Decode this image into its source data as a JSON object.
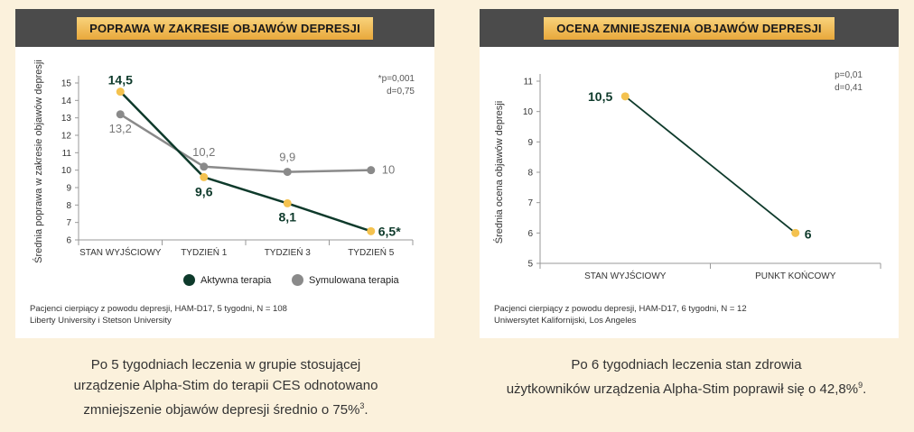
{
  "left": {
    "header": "POPRAWA W ZAKRESIE OBJAWÓW DEPRESJI",
    "stat_line1": "*p=0,001",
    "stat_line2": "d=0,75",
    "legend_active": "Aktywna terapia",
    "legend_sham": "Symulowana terapia",
    "note_line1": "Pacjenci cierpiący z powodu depresji, HAM-D17, 5 tygodni, N = 108",
    "note_line2": "Liberty University i Stetson University",
    "caption_line1": "Po 5 tygodniach leczenia w grupie stosującej",
    "caption_line2": "urządzenie Alpha-Stim do terapii CES odnotowano",
    "caption_line3": "zmniejszenie objawów depresji średnio o 75%",
    "caption_sup": "3",
    "caption_end": "."
  },
  "right": {
    "header": "OCENA ZMNIEJSZENIA OBJAWÓW DEPRESJI",
    "stat_line1": "p=0,01",
    "stat_line2": "d=0,41",
    "note_line1": "Pacjenci cierpiący z powodu depresji, HAM-D17, 6 tygodni, N = 12",
    "note_line2": "Uniwersytet Kalifornijski, Los Angeles",
    "caption_line1": "Po 6 tygodniach leczenia stan zdrowia",
    "caption_line2": "użytkowników urządzenia Alpha-Stim poprawił się o 42,8%",
    "caption_sup": "9",
    "caption_end": "."
  },
  "colors": {
    "active": "#0e3a2b",
    "sham": "#8a8a8a",
    "marker": "#f4c24f",
    "header_bg": "#4b4b4b"
  },
  "chart_data": [
    {
      "type": "line",
      "title": "POPRAWA W ZAKRESIE OBJAWÓW DEPRESJI",
      "ylabel": "Średnia poprawa w zakresie objawów depresji",
      "xlabel": "",
      "categories": [
        "STAN WYJŚCIOWY",
        "TYDZIEŃ 1",
        "TYDZIEŃ 3",
        "TYDZIEŃ 5"
      ],
      "ylim": [
        6,
        15
      ],
      "yticks": [
        "6",
        "7",
        "8",
        "9",
        "10",
        "11",
        "12",
        "13",
        "14",
        "15"
      ],
      "series": [
        {
          "name": "Aktywna terapia",
          "values": [
            14.5,
            9.6,
            8.1,
            6.5
          ],
          "labels": [
            "14,5",
            "9,6",
            "8,1",
            "6,5*"
          ]
        },
        {
          "name": "Symulowana terapia",
          "values": [
            13.2,
            10.2,
            9.9,
            10
          ],
          "labels": [
            "13,2",
            "10,2",
            "9,9",
            "10"
          ]
        }
      ],
      "grid": false,
      "legend": "bottom-right"
    },
    {
      "type": "line",
      "title": "OCENA ZMNIEJSZENIA OBJAWÓW DEPRESJI",
      "ylabel": "Średnia ocena objawów depresji",
      "xlabel": "",
      "categories": [
        "STAN WYJŚCIOWY",
        "PUNKT KOŃCOWY"
      ],
      "ylim": [
        5,
        11
      ],
      "yticks": [
        "5",
        "6",
        "7",
        "8",
        "9",
        "10",
        "11"
      ],
      "series": [
        {
          "values": [
            10.5,
            6
          ],
          "labels": [
            "10,5",
            "6"
          ]
        }
      ],
      "grid": false
    }
  ]
}
